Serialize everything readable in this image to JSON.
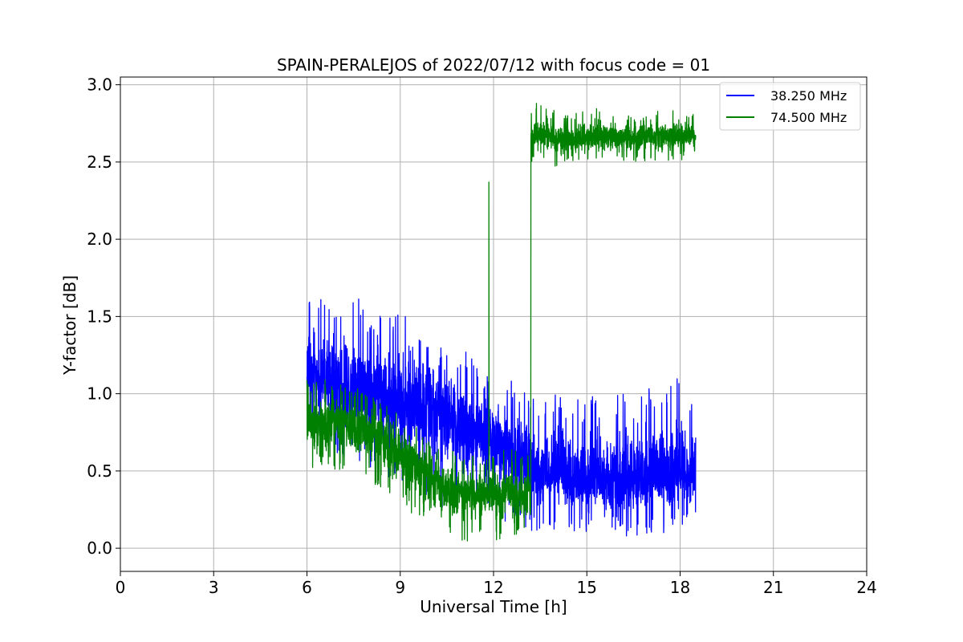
{
  "chart_data": {
    "type": "line",
    "title": "SPAIN-PERALEJOS of 2022/07/12 with focus code = 01",
    "xlabel": "Universal Time [h]",
    "ylabel": "Y-factor [dB]",
    "xlim": [
      0,
      24
    ],
    "ylim": [
      -0.15,
      3.05
    ],
    "xticks": [
      0,
      3,
      6,
      9,
      12,
      15,
      18,
      21,
      24
    ],
    "xtick_labels": [
      "0",
      "3",
      "6",
      "9",
      "12",
      "15",
      "18",
      "21",
      "24"
    ],
    "yticks": [
      0.0,
      0.5,
      1.0,
      1.5,
      2.0,
      2.5,
      3.0
    ],
    "ytick_labels": [
      "0.0",
      "0.5",
      "1.0",
      "1.5",
      "2.0",
      "2.5",
      "3.0"
    ],
    "grid": true,
    "legend_position": "top-right",
    "series": [
      {
        "name": "38.250 MHz",
        "color": "#0000ff",
        "x": [
          6.0,
          6.5,
          7.0,
          7.5,
          8.0,
          8.5,
          9.0,
          9.5,
          10.0,
          10.5,
          11.0,
          11.5,
          12.0,
          12.5,
          13.0,
          13.5,
          14.0,
          14.5,
          15.0,
          15.5,
          16.0,
          16.5,
          17.0,
          17.5,
          18.0,
          18.5
        ],
        "mean": [
          1.15,
          1.1,
          1.05,
          1.05,
          1.0,
          1.0,
          0.95,
          0.95,
          0.9,
          0.85,
          0.8,
          0.75,
          0.75,
          0.65,
          0.55,
          0.5,
          0.5,
          0.45,
          0.45,
          0.45,
          0.45,
          0.45,
          0.45,
          0.45,
          0.5,
          0.5
        ],
        "min": [
          0.75,
          0.7,
          0.6,
          0.55,
          0.5,
          0.45,
          0.4,
          0.35,
          0.3,
          0.25,
          0.2,
          0.2,
          0.2,
          0.15,
          0.1,
          0.1,
          0.1,
          0.1,
          0.1,
          0.1,
          0.1,
          0.05,
          0.1,
          0.1,
          0.15,
          0.15
        ],
        "max": [
          1.7,
          1.6,
          1.6,
          1.65,
          1.55,
          1.5,
          1.55,
          1.5,
          1.4,
          1.35,
          1.3,
          1.25,
          1.1,
          1.1,
          1.05,
          0.95,
          1.0,
          0.95,
          1.0,
          0.95,
          1.0,
          1.0,
          1.05,
          1.0,
          1.15,
          0.9
        ]
      },
      {
        "name": "74.500 MHz",
        "color": "#008000",
        "x": [
          6.0,
          6.5,
          7.0,
          7.5,
          8.0,
          8.5,
          9.0,
          9.5,
          10.0,
          10.5,
          11.0,
          11.5,
          12.0,
          12.5,
          13.0,
          13.2,
          13.5,
          14.0,
          14.5,
          15.0,
          15.5,
          16.0,
          16.5,
          17.0,
          17.5,
          18.0,
          18.5
        ],
        "mean": [
          0.85,
          0.82,
          0.8,
          0.78,
          0.75,
          0.7,
          0.6,
          0.55,
          0.45,
          0.4,
          0.35,
          0.35,
          0.35,
          0.35,
          0.35,
          2.65,
          2.68,
          2.66,
          2.65,
          2.65,
          2.67,
          2.66,
          2.65,
          2.67,
          2.66,
          2.67,
          2.68
        ],
        "min": [
          0.5,
          0.5,
          0.5,
          0.5,
          0.45,
          0.35,
          0.3,
          0.2,
          0.1,
          0.05,
          0.02,
          0.05,
          0.05,
          0.05,
          0.05,
          2.5,
          2.55,
          2.45,
          2.5,
          2.5,
          2.5,
          2.5,
          2.5,
          2.5,
          2.48,
          2.5,
          2.55
        ],
        "max": [
          1.15,
          1.1,
          1.1,
          1.05,
          1.0,
          0.95,
          0.85,
          0.8,
          0.7,
          0.65,
          0.6,
          0.6,
          0.65,
          0.65,
          0.6,
          2.85,
          2.9,
          2.85,
          2.8,
          2.85,
          2.85,
          2.8,
          2.8,
          2.8,
          2.85,
          2.85,
          2.8
        ]
      }
    ],
    "annotations": [
      {
        "series": "74.500 MHz",
        "type": "spike",
        "x": 11.85,
        "y": 2.37
      },
      {
        "series": "74.500 MHz",
        "type": "step",
        "x": 13.2,
        "from": 0.35,
        "to": 2.65
      }
    ]
  }
}
